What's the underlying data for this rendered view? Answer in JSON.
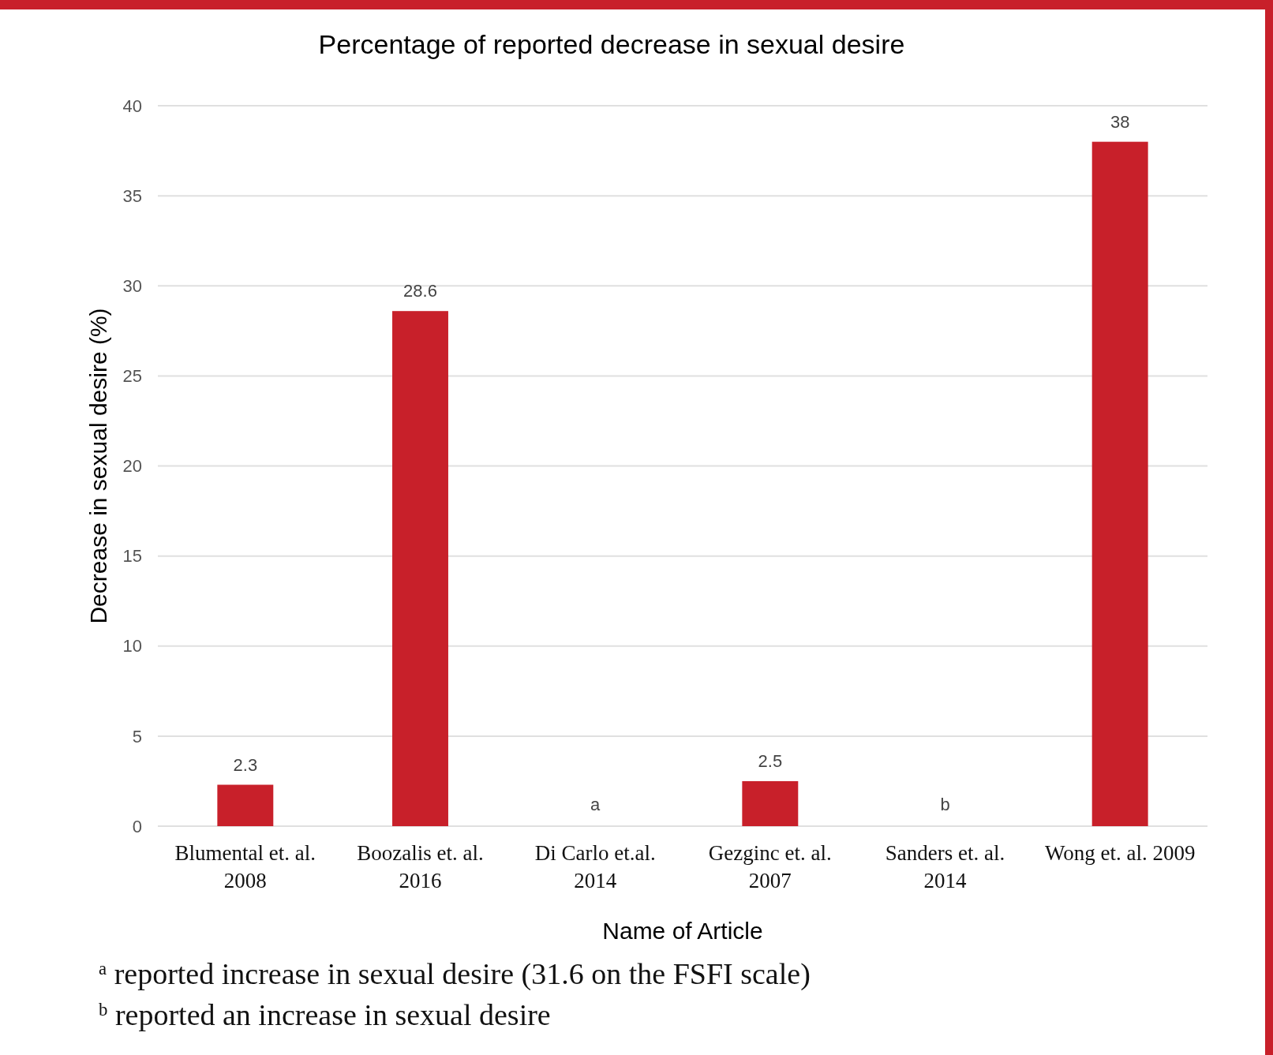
{
  "chart_data": {
    "type": "bar",
    "title": "Percentage of reported decrease in sexual desire",
    "xlabel": "Name of Article",
    "ylabel": "Decrease in sexual desire (%)",
    "categories": [
      "Blumental et. al.\n2008",
      "Boozalis et. al.\n2016",
      "Di Carlo et.al.\n2014",
      "Gezginc et. al.\n2007",
      "Sanders et. al.\n2014",
      "Wong et. al. 2009"
    ],
    "values": [
      2.3,
      28.6,
      null,
      2.5,
      null,
      38
    ],
    "value_labels": [
      "2.3",
      "28.6",
      "a",
      "2.5",
      "b",
      "38"
    ],
    "color": "#c8202a",
    "ylim": [
      0,
      40
    ],
    "yticks": [
      0,
      5,
      10,
      15,
      20,
      25,
      30,
      35,
      40
    ],
    "grid": "y",
    "annotations": [
      "$^{a}$  reported increase in sexual desire  (31.6 on the FSFI scale)",
      "$^{b}$ reported an increase in sexual desire"
    ]
  }
}
